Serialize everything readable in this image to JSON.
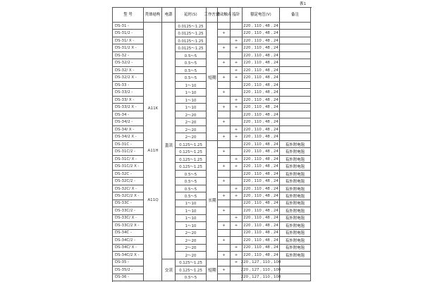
{
  "table_label": "表1",
  "headers": {
    "model": "型  号",
    "shell": "壳体结构",
    "power": "电源",
    "delay": "延时(S)",
    "mode": "工作方式",
    "slide": "滑动触点",
    "pointer": "指针",
    "voltage": "额定电压(V)",
    "remark": "备注"
  },
  "groups": {
    "shell": [
      "A11K",
      "A11H",
      "A11Q"
    ],
    "power": [
      "直流",
      "交流"
    ],
    "mode": [
      "短期",
      "长期",
      "短期"
    ]
  },
  "rows": [
    {
      "model": "DS-31 -",
      "delay": "0.0125～1.25",
      "slide": "",
      "pointer": "",
      "voltage": "220 , 110 , 48 , 24",
      "remark": ""
    },
    {
      "model": "DS-31/2 -",
      "delay": "0.0125～1.25",
      "slide": "+",
      "pointer": "",
      "voltage": "220 , 110 , 48 , 24",
      "remark": ""
    },
    {
      "model": "DS-31/ X -",
      "delay": "0.0125～1.25",
      "slide": "",
      "pointer": "+",
      "voltage": "220 , 110 , 48 , 24",
      "remark": ""
    },
    {
      "model": "DS-31/2 X -",
      "delay": "0.0125～1.25",
      "slide": "+",
      "pointer": "+",
      "voltage": "220 , 110 , 48 , 24",
      "remark": ""
    },
    {
      "model": "DS-32 -",
      "delay": "0.5～5",
      "slide": "",
      "pointer": "",
      "voltage": "220 , 110 , 48 , 24",
      "remark": ""
    },
    {
      "model": "DS-32/2 -",
      "delay": "0.5～5",
      "slide": "+",
      "pointer": "+",
      "voltage": "220 , 110 , 48 , 24",
      "remark": ""
    },
    {
      "model": "DS-32/ X -",
      "delay": "0.5～5",
      "slide": "",
      "pointer": "+",
      "voltage": "220 , 110 , 48 , 24",
      "remark": ""
    },
    {
      "model": "DS-32/2 X -",
      "delay": "0.5～5",
      "slide": "+",
      "pointer": "+",
      "voltage": "220 , 110 , 48 , 24",
      "remark": ""
    },
    {
      "model": "DS-33 -",
      "delay": "1～10",
      "slide": "",
      "pointer": "",
      "voltage": "220 , 110 , 48 , 24",
      "remark": ""
    },
    {
      "model": "DS-33/2 -",
      "delay": "1～10",
      "slide": "+",
      "pointer": "",
      "voltage": "220 , 110 , 48 , 24",
      "remark": ""
    },
    {
      "model": "DS-33/ X -",
      "delay": "1～10",
      "slide": "",
      "pointer": "+",
      "voltage": "220 , 110 , 48 , 24",
      "remark": ""
    },
    {
      "model": "DS-33/2 X -",
      "delay": "1～10",
      "slide": "+",
      "pointer": "+",
      "voltage": "220 , 110 , 48 , 24",
      "remark": ""
    },
    {
      "model": "DS-34 -",
      "delay": "2～20",
      "slide": "",
      "pointer": "",
      "voltage": "220 , 110 , 48 , 24",
      "remark": ""
    },
    {
      "model": "DS-34/2 -",
      "delay": "2～20",
      "slide": "+",
      "pointer": "",
      "voltage": "220 , 110 , 48 , 24",
      "remark": ""
    },
    {
      "model": "DS-34/ X -",
      "delay": "2～20",
      "slide": "",
      "pointer": "+",
      "voltage": "220 , 110 , 48 , 24",
      "remark": ""
    },
    {
      "model": "DS-34/2 X -",
      "delay": "2～20",
      "slide": "+",
      "pointer": "+",
      "voltage": "220 , 110 , 48 , 24",
      "remark": ""
    },
    {
      "model": "DS-31C -",
      "delay": "0.125～1.25",
      "slide": "",
      "pointer": "",
      "voltage": "220 , 110 , 48 , 24",
      "remark": "有外附电阻"
    },
    {
      "model": "DS-31C/2 -",
      "delay": "0.125～1.25",
      "slide": "+",
      "pointer": "",
      "voltage": "220 , 110 , 48 , 24",
      "remark": "有外附电阻"
    },
    {
      "model": "DS-31C/ X -",
      "delay": "0.125～1.25",
      "slide": "",
      "pointer": "+",
      "voltage": "220 , 110 , 48 , 24",
      "remark": "有外附电阻"
    },
    {
      "model": "DS-31C/2 X -",
      "delay": "0.125～1.25",
      "slide": "+",
      "pointer": "+",
      "voltage": "220 , 110 , 48 , 24",
      "remark": "有外附电阻"
    },
    {
      "model": "DS-32C -",
      "delay": "0.5～5",
      "slide": "",
      "pointer": "",
      "voltage": "220 , 110 , 48 , 24",
      "remark": "有外附电阻"
    },
    {
      "model": "DS-32C/2 -",
      "delay": "0.5～5",
      "slide": "+",
      "pointer": "",
      "voltage": "220 , 110 , 48 , 24",
      "remark": "有外附电阻"
    },
    {
      "model": "DS-32C/ X -",
      "delay": "0.5～5",
      "slide": "",
      "pointer": "+",
      "voltage": "220 , 110 , 48 , 24",
      "remark": "有外附电阻"
    },
    {
      "model": "DS-32C/2 X -",
      "delay": "0.5～5",
      "slide": "+",
      "pointer": "+",
      "voltage": "220 , 110 , 48 , 24",
      "remark": "有外附电阻"
    },
    {
      "model": "DS-33C -",
      "delay": "1～10",
      "slide": "",
      "pointer": "",
      "voltage": "220 , 110 , 48 , 24",
      "remark": "有外附电阻"
    },
    {
      "model": "DS-33C/2 -",
      "delay": "1～10",
      "slide": "+",
      "pointer": "",
      "voltage": "220 , 110 , 48 , 24",
      "remark": "有外附电阻"
    },
    {
      "model": "DS-33C/ X -",
      "delay": "1～10",
      "slide": "",
      "pointer": "+",
      "voltage": "220 , 110 , 48 , 24",
      "remark": "有外附电阻"
    },
    {
      "model": "DS-33C/2 X -",
      "delay": "1～10",
      "slide": "+",
      "pointer": "+",
      "voltage": "220 , 110 , 48 , 24",
      "remark": "有外附电阻"
    },
    {
      "model": "DS-34C -",
      "delay": "2～20",
      "slide": "",
      "pointer": "",
      "voltage": "220 , 110 , 48 , 24",
      "remark": "有外附电阻"
    },
    {
      "model": "DS-34C/2 -",
      "delay": "2～20",
      "slide": "+",
      "pointer": "",
      "voltage": "220 , 110 , 48 , 24",
      "remark": "有外附电阻"
    },
    {
      "model": "DS-34C/ X -",
      "delay": "2～20",
      "slide": "",
      "pointer": "+",
      "voltage": "220 , 110 , 48 , 24",
      "remark": "有外附电阻"
    },
    {
      "model": "DS-34C/2 X -",
      "delay": "2～20",
      "slide": "+",
      "pointer": "+",
      "voltage": "220 , 110 , 48 , 24",
      "remark": "有外附电阻"
    },
    {
      "model": "DS-35 -",
      "delay": "0.125～1.25",
      "slide": "",
      "pointer": "+",
      "voltage": "220 , 127 , 110 , 100",
      "remark": ""
    },
    {
      "model": "DS-35/2  -",
      "delay": "0.125～1.25",
      "slide": "+",
      "pointer": "",
      "voltage": "220 , 127 , 110 , 100",
      "remark": ""
    },
    {
      "model": "DS-36 -",
      "delay": "0.5～5",
      "slide": "",
      "pointer": "",
      "voltage": "220 , 127 , 110 , 100",
      "remark": ""
    }
  ]
}
